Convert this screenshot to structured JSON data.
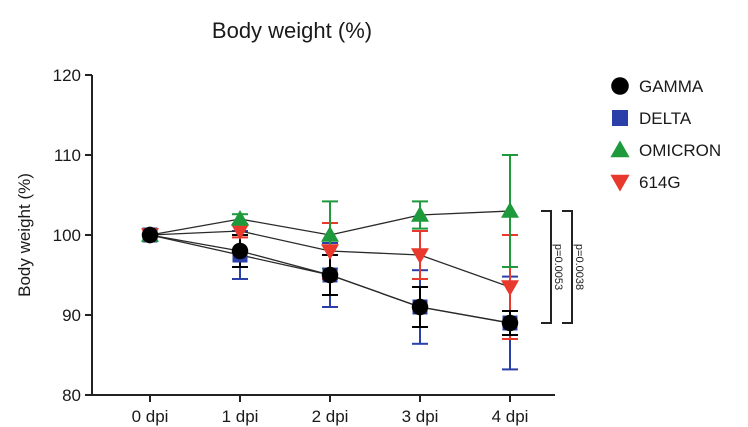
{
  "chart_data": {
    "type": "line",
    "title": "Body weight (%)",
    "xlabel": "",
    "ylabel": "Body weight (%)",
    "ylim": [
      80,
      120
    ],
    "yticks": [
      80,
      90,
      100,
      110,
      120
    ],
    "categories": [
      "0 dpi",
      "1 dpi",
      "2 dpi",
      "3 dpi",
      "4 dpi"
    ],
    "legend_position": "right",
    "grid": false,
    "series": [
      {
        "name": "GAMMA",
        "color": "#000000",
        "marker": "circle",
        "values": [
          100,
          98,
          95,
          91,
          89
        ],
        "error": [
          null,
          2.0,
          2.5,
          2.5,
          1.5
        ]
      },
      {
        "name": "DELTA",
        "color": "#2b3fa8",
        "marker": "square",
        "values": [
          100,
          97.5,
          95,
          91,
          89
        ],
        "error": [
          null,
          3.0,
          4.0,
          4.6,
          5.8
        ]
      },
      {
        "name": "OMICRON",
        "color": "#1e9a3c",
        "marker": "triangle-up",
        "values": [
          100,
          102,
          100,
          102.5,
          103
        ],
        "error": [
          null,
          0.6,
          4.2,
          1.7,
          7.0
        ]
      },
      {
        "name": "614G",
        "color": "#e8392c",
        "marker": "triangle-down",
        "values": [
          100,
          100.5,
          98,
          97.5,
          93.5
        ],
        "error": [
          null,
          0.8,
          3.5,
          3.0,
          6.5
        ]
      }
    ],
    "annotations": [
      {
        "text": "p=0.0053",
        "from": 103,
        "to": 89
      },
      {
        "text": "p=0.0038",
        "from": 103,
        "to": 89
      }
    ]
  }
}
